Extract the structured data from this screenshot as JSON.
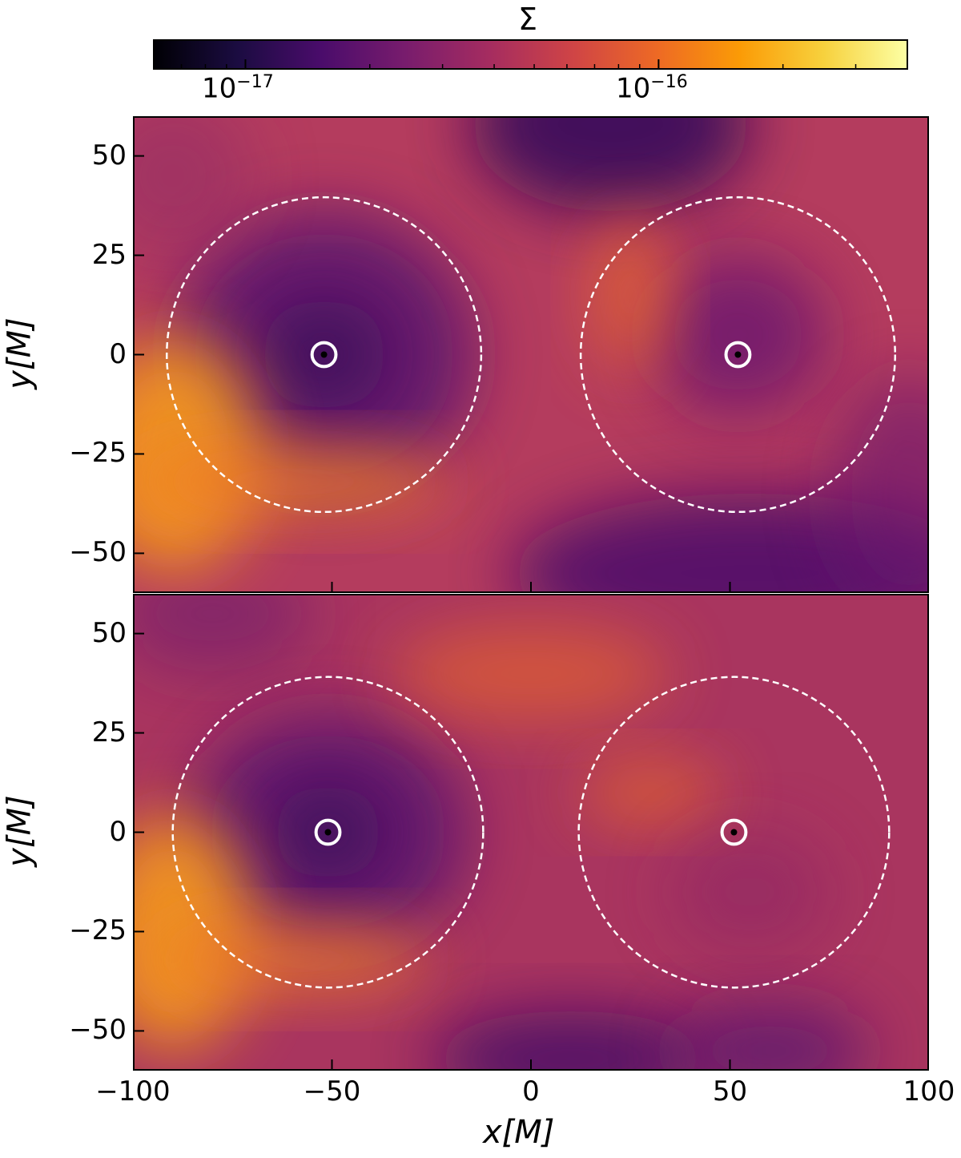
{
  "chart_data": {
    "type": "heatmap",
    "colorbar": {
      "label": "Σ",
      "scale": "log",
      "colormap": "inferno",
      "range": [
        6e-18,
        4e-16
      ],
      "tick_labels": [
        {
          "value": 1e-17,
          "base": "10",
          "exp": "−17"
        },
        {
          "value": 1e-16,
          "base": "10",
          "exp": "−16"
        }
      ],
      "colors": [
        "#000004",
        "#1b0c41",
        "#4a0c6b",
        "#781c6d",
        "#a52c60",
        "#cf4446",
        "#ed6925",
        "#fb9b06",
        "#f7d13d",
        "#fcffa4"
      ]
    },
    "xlabel": "x[M]",
    "ylabel": "y[M]",
    "xlim": [
      -100,
      100
    ],
    "ylim": [
      -60,
      60
    ],
    "xticks": [
      -100,
      -50,
      0,
      50,
      100
    ],
    "xtick_labels": [
      "−100",
      "−50",
      "0",
      "50",
      "100"
    ],
    "yticks": [
      -50,
      -25,
      0,
      25,
      50
    ],
    "ytick_labels": [
      "−50",
      "−25",
      "0",
      "25",
      "50"
    ],
    "panels": [
      {
        "black_holes": [
          {
            "x": -52,
            "y": 0
          },
          {
            "x": 52,
            "y": 0
          }
        ],
        "dashed_circle_radius": 39.5,
        "marker_radius": 3
      },
      {
        "black_holes": [
          {
            "x": -51,
            "y": 0
          },
          {
            "x": 51,
            "y": 0
          }
        ],
        "dashed_circle_radius": 39,
        "marker_radius": 3
      }
    ]
  }
}
